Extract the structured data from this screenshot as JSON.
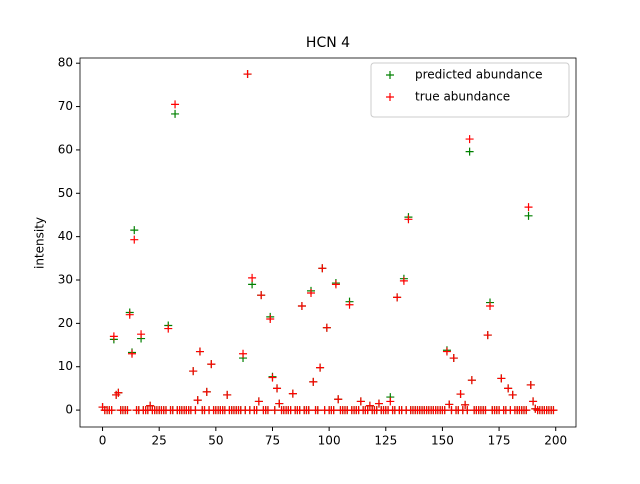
{
  "chart_data": {
    "type": "scatter",
    "title": "HCN 4",
    "ylabel": "intensity",
    "x": [
      0,
      1,
      2,
      3,
      4,
      5,
      6,
      7,
      8,
      9,
      10,
      11,
      12,
      13,
      14,
      15,
      16,
      17,
      18,
      19,
      20,
      21,
      22,
      23,
      24,
      25,
      26,
      27,
      28,
      29,
      30,
      31,
      32,
      33,
      34,
      35,
      36,
      37,
      38,
      39,
      40,
      41,
      42,
      43,
      44,
      45,
      46,
      47,
      48,
      49,
      50,
      51,
      52,
      53,
      54,
      55,
      56,
      57,
      58,
      59,
      60,
      61,
      62,
      63,
      64,
      65,
      66,
      67,
      68,
      69,
      70,
      71,
      72,
      73,
      74,
      75,
      76,
      77,
      78,
      79,
      80,
      81,
      82,
      83,
      84,
      85,
      86,
      87,
      88,
      89,
      90,
      91,
      92,
      93,
      94,
      95,
      96,
      97,
      98,
      99,
      100,
      101,
      102,
      103,
      104,
      105,
      106,
      107,
      108,
      109,
      110,
      111,
      112,
      113,
      114,
      115,
      116,
      117,
      118,
      119,
      120,
      121,
      122,
      123,
      124,
      125,
      126,
      127,
      128,
      129,
      130,
      131,
      132,
      133,
      134,
      135,
      136,
      137,
      138,
      139,
      140,
      141,
      142,
      143,
      144,
      145,
      146,
      147,
      148,
      149,
      150,
      151,
      152,
      153,
      154,
      155,
      156,
      157,
      158,
      159,
      160,
      161,
      162,
      163,
      164,
      165,
      166,
      167,
      168,
      169,
      170,
      171,
      172,
      173,
      174,
      175,
      176,
      177,
      178,
      179,
      180,
      181,
      182,
      183,
      184,
      185,
      186,
      187,
      188,
      189,
      190,
      191,
      192,
      193,
      194,
      195,
      196,
      197,
      198,
      199
    ],
    "series": [
      {
        "name": "predicted abundance",
        "color": "#008000",
        "values": [
          0.7,
          0,
          0,
          0,
          0,
          16.3,
          3.5,
          4,
          0,
          0,
          0,
          0,
          22.5,
          13.3,
          41.5,
          0,
          0,
          16.5,
          0,
          0,
          0,
          1,
          0,
          0,
          0,
          0,
          0,
          0,
          0,
          19.5,
          0,
          0,
          68.3,
          0,
          0,
          0,
          0,
          0,
          0,
          0,
          9,
          0,
          2.3,
          13.5,
          0,
          0,
          4.2,
          0,
          10.6,
          0,
          0,
          0,
          0,
          0,
          0,
          3.5,
          0,
          0,
          0,
          0,
          0,
          0,
          12,
          0,
          77.5,
          0,
          29,
          0,
          0,
          2,
          26.5,
          0,
          0,
          0,
          21.5,
          7.7,
          0,
          5,
          1.5,
          0,
          0,
          0,
          0,
          0,
          3.8,
          0,
          0,
          0,
          24,
          0,
          0,
          0,
          27.5,
          6.5,
          0,
          0,
          9.8,
          32.7,
          0,
          19,
          0,
          0,
          0,
          29.3,
          2.5,
          0,
          0,
          0,
          0,
          25,
          0,
          0,
          0,
          0,
          2,
          0,
          0,
          0,
          1,
          0,
          0,
          0,
          1.5,
          0,
          0,
          0,
          0,
          3,
          0,
          0,
          26,
          0,
          0,
          30.3,
          0,
          44.5,
          0,
          0,
          0,
          0,
          0,
          0,
          0,
          0,
          0,
          0,
          0,
          0,
          0,
          0,
          0,
          0,
          13.8,
          1.3,
          0,
          12,
          0,
          0,
          3.7,
          0,
          1.2,
          0,
          59.6,
          6.9,
          0,
          0,
          0,
          0,
          0,
          0,
          17.3,
          24.8,
          0,
          0,
          0,
          0,
          7.3,
          0,
          0,
          5,
          0,
          3.5,
          0,
          0,
          0,
          0,
          0,
          0,
          44.8,
          5.8,
          2,
          0.3,
          0,
          0,
          0,
          0,
          0,
          0,
          0,
          0
        ]
      },
      {
        "name": "true abundance",
        "color": "#ff0000",
        "values": [
          0.7,
          0,
          0,
          0,
          0,
          17,
          3.5,
          4,
          0,
          0,
          0,
          0,
          22,
          13,
          39.3,
          0,
          0,
          17.5,
          0,
          0,
          0,
          1,
          0,
          0,
          0,
          0,
          0,
          0,
          0,
          18.8,
          0,
          0,
          70.5,
          0,
          0,
          0,
          0,
          0,
          0,
          0,
          9,
          0,
          2.3,
          13.5,
          0,
          0,
          4.2,
          0,
          10.6,
          0,
          0,
          0,
          0,
          0,
          0,
          3.5,
          0,
          0,
          0,
          0,
          0,
          0,
          13,
          0,
          77.5,
          0,
          30.5,
          0,
          0,
          2,
          26.5,
          0,
          0,
          0,
          21,
          7.5,
          0,
          5,
          1.5,
          0,
          0,
          0,
          0,
          0,
          3.8,
          0,
          0,
          0,
          24,
          0,
          0,
          0,
          27,
          6.5,
          0,
          0,
          9.8,
          32.7,
          0,
          19,
          0,
          0,
          0,
          29,
          2.5,
          0,
          0,
          0,
          0,
          24.3,
          0,
          0,
          0,
          0,
          2,
          0,
          0,
          0,
          1,
          0,
          0,
          0,
          1.5,
          0,
          0,
          0,
          0,
          2,
          0,
          0,
          26,
          0,
          0,
          29.8,
          0,
          44,
          0,
          0,
          0,
          0,
          0,
          0,
          0,
          0,
          0,
          0,
          0,
          0,
          0,
          0,
          0,
          0,
          13.5,
          1.3,
          0,
          12,
          0,
          0,
          3.7,
          0,
          1.2,
          0,
          62.5,
          6.9,
          0,
          0,
          0,
          0,
          0,
          0,
          17.3,
          24,
          0,
          0,
          0,
          0,
          7.3,
          0,
          0,
          5,
          0,
          3.5,
          0,
          0,
          0,
          0,
          0,
          0,
          46.8,
          5.8,
          2,
          0.3,
          0,
          0,
          0,
          0,
          0,
          0,
          0,
          0
        ]
      }
    ],
    "xlim": [
      -9.95,
      208.95
    ],
    "ylim": [
      -3.9,
      81.2
    ],
    "xticks": [
      0,
      25,
      50,
      75,
      100,
      125,
      150,
      175,
      200
    ],
    "yticks": [
      0,
      10,
      20,
      30,
      40,
      50,
      60,
      70,
      80
    ],
    "legend": "upper right"
  }
}
